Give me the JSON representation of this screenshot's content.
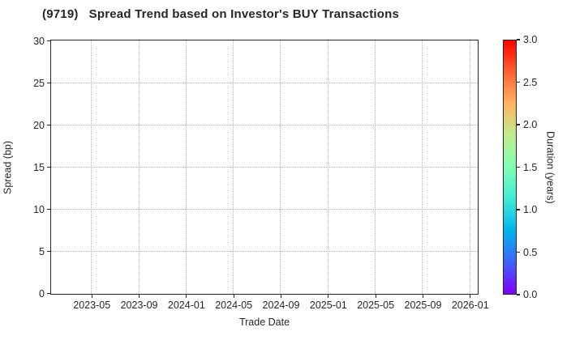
{
  "window": {
    "background": "#ffffff"
  },
  "colors": {
    "title": "#262626",
    "tick_label": "#262626",
    "spine": "#262626",
    "grid": "#b0b0b0"
  },
  "chart_data": {
    "type": "scatter",
    "title": "(9719)   Spread Trend based on Investor's BUY Transactions",
    "xlabel": "Trade Date",
    "ylabel": "Spread (bp)",
    "x_tick_labels": [
      "2023-05",
      "2023-09",
      "2024-01",
      "2024-05",
      "2024-09",
      "2025-01",
      "2025-05",
      "2025-09",
      "2026-01"
    ],
    "y_ticks": [
      0,
      5,
      10,
      15,
      20,
      25,
      30
    ],
    "ylim": [
      0,
      30
    ],
    "grid": true,
    "grid_style": "dotted",
    "points": [],
    "series": [],
    "colorbar": {
      "label": "Duration (years)",
      "ticks": [
        "0.0",
        "0.5",
        "1.0",
        "1.5",
        "2.0",
        "2.5",
        "3.0"
      ],
      "vmin": 0.0,
      "vmax": 3.0,
      "colormap": "rainbow",
      "gradient_stops_bottom_to_top": [
        "#8000ff",
        "#4062fa",
        "#00b4ec",
        "#40ecd4",
        "#80ffb4",
        "#bfec8e",
        "#ffb462",
        "#ff6232",
        "#ff0000"
      ]
    }
  }
}
